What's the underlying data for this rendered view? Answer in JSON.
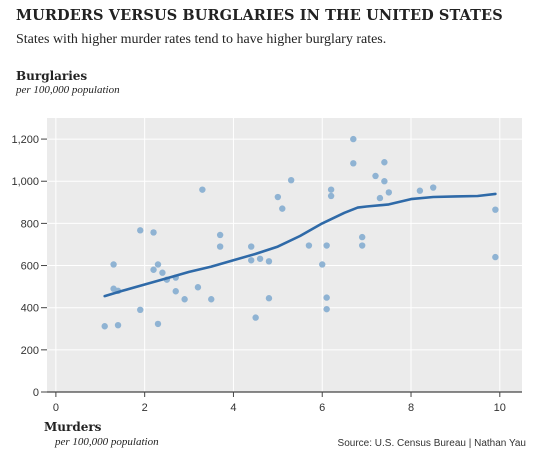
{
  "header": {
    "title": "MURDERS VERSUS BURGLARIES IN THE UNITED STATES",
    "subtitle": "States with higher murder rates tend to have higher burglary rates."
  },
  "source": "Source: U.S. Census Bureau | Nathan Yau",
  "chart_data": {
    "type": "scatter",
    "title": "MURDERS VERSUS BURGLARIES IN THE UNITED STATES",
    "subtitle": "States with higher murder rates tend to have higher burglary rates.",
    "xlabel": "Murders",
    "xlabel_sub": "per 100,000 population",
    "ylabel": "Burglaries",
    "ylabel_sub": "per 100,000 population",
    "xlim": [
      -0.2,
      10.5
    ],
    "ylim": [
      0,
      1300
    ],
    "xticks": [
      0,
      2,
      4,
      6,
      8,
      10
    ],
    "xtick_labels": [
      "0",
      "2",
      "4",
      "6",
      "8",
      "10"
    ],
    "yticks": [
      0,
      200,
      400,
      600,
      800,
      1000,
      1200
    ],
    "ytick_labels": [
      "0",
      "200",
      "400",
      "600",
      "800",
      "1,000",
      "1,200"
    ],
    "grid": true,
    "colors": {
      "points": "#8fb3d3",
      "trend": "#2f6aa8",
      "background": "#ebebeb",
      "grid": "#ffffff"
    },
    "points": [
      {
        "x": 1.1,
        "y": 312
      },
      {
        "x": 1.3,
        "y": 490
      },
      {
        "x": 1.3,
        "y": 605
      },
      {
        "x": 1.4,
        "y": 480
      },
      {
        "x": 1.4,
        "y": 317
      },
      {
        "x": 1.9,
        "y": 390
      },
      {
        "x": 1.9,
        "y": 767
      },
      {
        "x": 2.2,
        "y": 757
      },
      {
        "x": 2.2,
        "y": 580
      },
      {
        "x": 2.3,
        "y": 323
      },
      {
        "x": 2.3,
        "y": 605
      },
      {
        "x": 2.4,
        "y": 566
      },
      {
        "x": 2.5,
        "y": 533
      },
      {
        "x": 2.7,
        "y": 543
      },
      {
        "x": 2.7,
        "y": 478
      },
      {
        "x": 2.9,
        "y": 440
      },
      {
        "x": 3.2,
        "y": 497
      },
      {
        "x": 3.3,
        "y": 960
      },
      {
        "x": 3.5,
        "y": 440
      },
      {
        "x": 3.7,
        "y": 690
      },
      {
        "x": 3.7,
        "y": 745
      },
      {
        "x": 4.4,
        "y": 690
      },
      {
        "x": 4.4,
        "y": 625
      },
      {
        "x": 4.5,
        "y": 353
      },
      {
        "x": 4.6,
        "y": 632
      },
      {
        "x": 4.8,
        "y": 620
      },
      {
        "x": 4.8,
        "y": 445
      },
      {
        "x": 5.0,
        "y": 925
      },
      {
        "x": 5.1,
        "y": 870
      },
      {
        "x": 5.3,
        "y": 1005
      },
      {
        "x": 5.7,
        "y": 695
      },
      {
        "x": 6.0,
        "y": 605
      },
      {
        "x": 6.1,
        "y": 695
      },
      {
        "x": 6.1,
        "y": 448
      },
      {
        "x": 6.1,
        "y": 393
      },
      {
        "x": 6.2,
        "y": 930
      },
      {
        "x": 6.2,
        "y": 960
      },
      {
        "x": 6.7,
        "y": 1200
      },
      {
        "x": 6.7,
        "y": 1085
      },
      {
        "x": 6.9,
        "y": 735
      },
      {
        "x": 6.9,
        "y": 695
      },
      {
        "x": 7.2,
        "y": 1025
      },
      {
        "x": 7.3,
        "y": 920
      },
      {
        "x": 7.4,
        "y": 1000
      },
      {
        "x": 7.4,
        "y": 1090
      },
      {
        "x": 7.5,
        "y": 947
      },
      {
        "x": 8.2,
        "y": 955
      },
      {
        "x": 8.5,
        "y": 970
      },
      {
        "x": 9.9,
        "y": 865
      },
      {
        "x": 9.9,
        "y": 640
      }
    ],
    "trend_line": {
      "x": [
        1.1,
        1.5,
        2.0,
        2.5,
        3.0,
        3.5,
        4.0,
        4.5,
        5.0,
        5.5,
        6.0,
        6.5,
        6.8,
        7.0,
        7.5,
        8.0,
        8.5,
        9.0,
        9.5,
        9.9
      ],
      "y": [
        455,
        480,
        510,
        540,
        570,
        595,
        625,
        655,
        690,
        740,
        800,
        850,
        875,
        880,
        890,
        915,
        925,
        928,
        930,
        940
      ]
    }
  }
}
